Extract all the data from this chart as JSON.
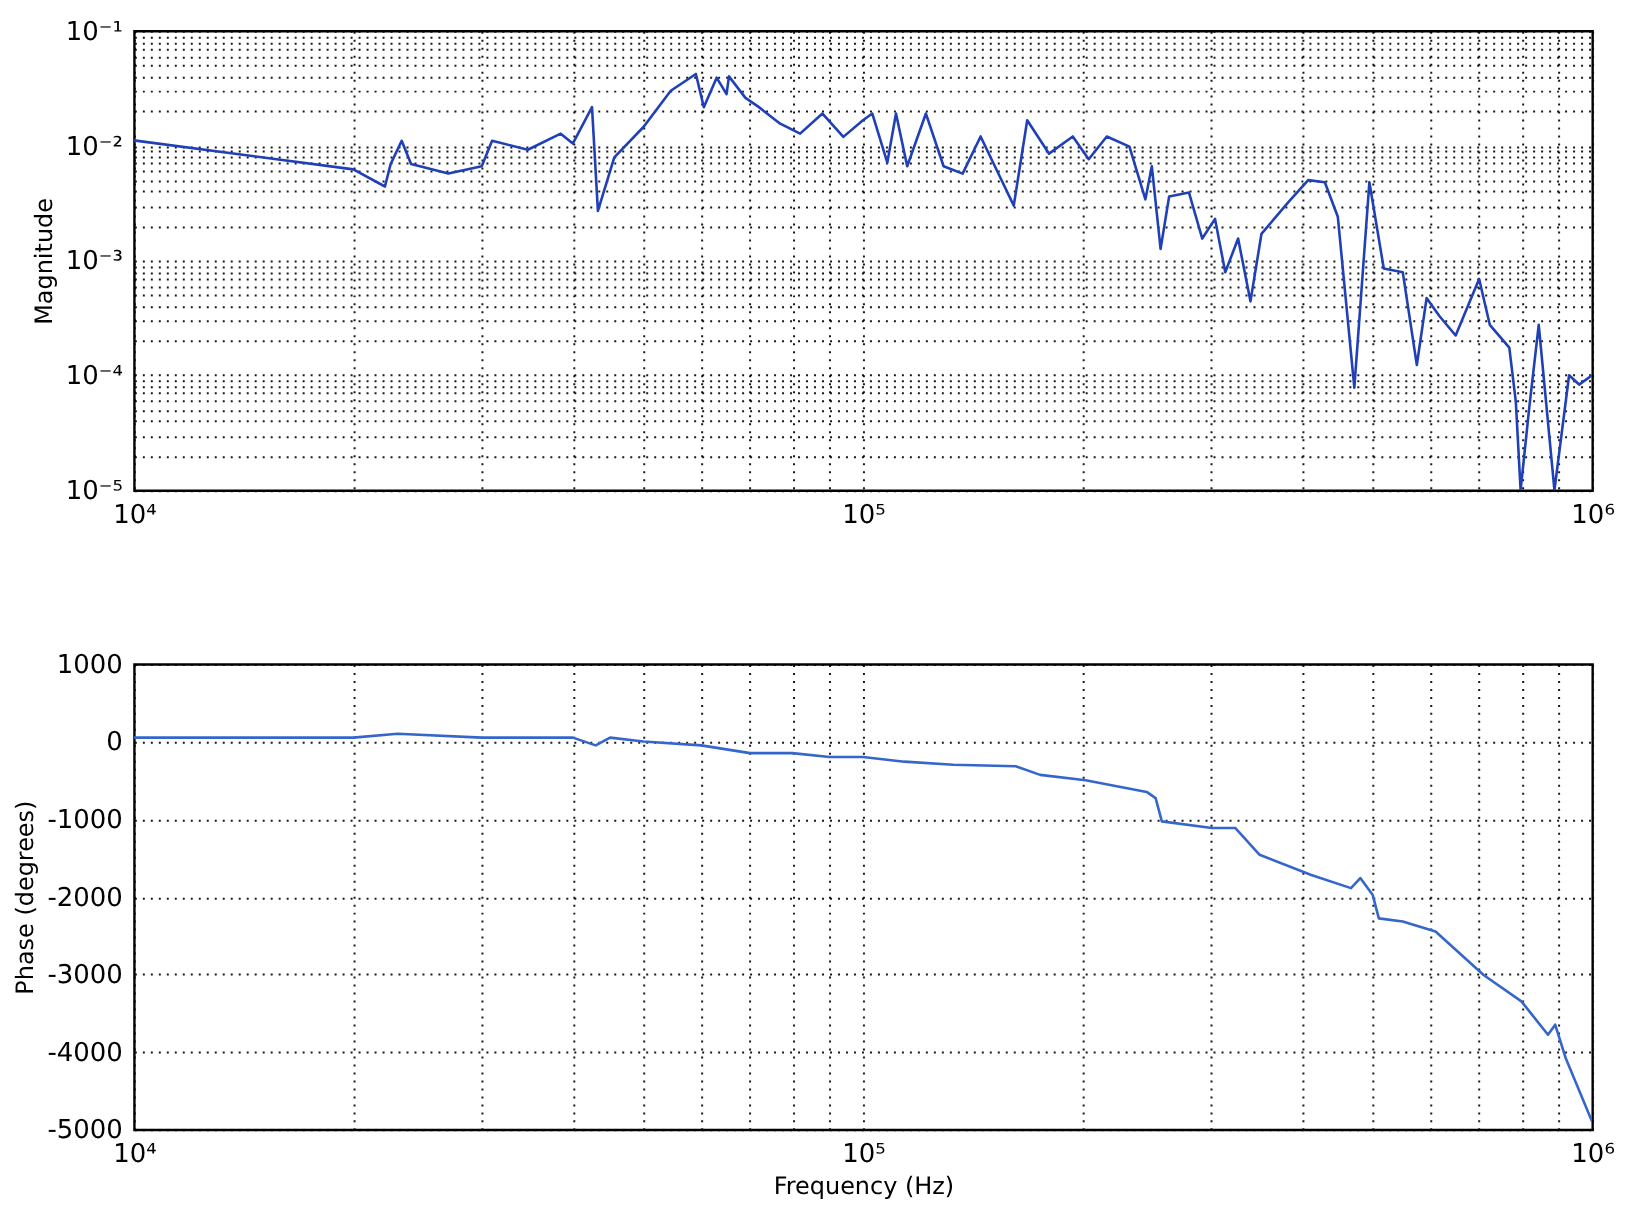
{
  "chart_data": [
    {
      "type": "line",
      "ylabel": "Magnitude",
      "log": "xy",
      "grid": true,
      "marker": "none",
      "line_style": "solid",
      "xlim": [
        10000,
        1000000
      ],
      "xticks": [
        {
          "value": 10000,
          "label": "10⁴"
        },
        {
          "value": 20000,
          "label": null
        },
        {
          "value": 30000,
          "label": null
        },
        {
          "value": 40000,
          "label": null
        },
        {
          "value": 50000,
          "label": null
        },
        {
          "value": 60000,
          "label": null
        },
        {
          "value": 70000,
          "label": null
        },
        {
          "value": 80000,
          "label": null
        },
        {
          "value": 90000,
          "label": null
        },
        {
          "value": 100000,
          "label": "10⁵"
        },
        {
          "value": 200000,
          "label": null
        },
        {
          "value": 300000,
          "label": null
        },
        {
          "value": 400000,
          "label": null
        },
        {
          "value": 500000,
          "label": null
        },
        {
          "value": 600000,
          "label": null
        },
        {
          "value": 700000,
          "label": null
        },
        {
          "value": 800000,
          "label": null
        },
        {
          "value": 900000,
          "label": null
        },
        {
          "value": 1000000,
          "label": "10⁶"
        }
      ],
      "ylim": [
        1e-05,
        0.1
      ],
      "yticks": [
        {
          "value": 1e-05,
          "label": "10⁻⁵"
        },
        {
          "value": 2e-05,
          "label": null
        },
        {
          "value": 3e-05,
          "label": null
        },
        {
          "value": 4e-05,
          "label": null
        },
        {
          "value": 5e-05,
          "label": null
        },
        {
          "value": 6e-05,
          "label": null
        },
        {
          "value": 7e-05,
          "label": null
        },
        {
          "value": 8e-05,
          "label": null
        },
        {
          "value": 9e-05,
          "label": null
        },
        {
          "value": 0.0001,
          "label": "10⁻⁴"
        },
        {
          "value": 0.0002,
          "label": null
        },
        {
          "value": 0.0003,
          "label": null
        },
        {
          "value": 0.0004,
          "label": null
        },
        {
          "value": 0.0005,
          "label": null
        },
        {
          "value": 0.0006,
          "label": null
        },
        {
          "value": 0.0007,
          "label": null
        },
        {
          "value": 0.0008,
          "label": null
        },
        {
          "value": 0.0009,
          "label": null
        },
        {
          "value": 0.001,
          "label": "10⁻³"
        },
        {
          "value": 0.002,
          "label": null
        },
        {
          "value": 0.003,
          "label": null
        },
        {
          "value": 0.004,
          "label": null
        },
        {
          "value": 0.005,
          "label": null
        },
        {
          "value": 0.006,
          "label": null
        },
        {
          "value": 0.007,
          "label": null
        },
        {
          "value": 0.008,
          "label": null
        },
        {
          "value": 0.009,
          "label": null
        },
        {
          "value": 0.01,
          "label": "10⁻²"
        },
        {
          "value": 0.02,
          "label": null
        },
        {
          "value": 0.03,
          "label": null
        },
        {
          "value": 0.04,
          "label": null
        },
        {
          "value": 0.05,
          "label": null
        },
        {
          "value": 0.06,
          "label": null
        },
        {
          "value": 0.07,
          "label": null
        },
        {
          "value": 0.08,
          "label": null
        },
        {
          "value": 0.09,
          "label": null
        },
        {
          "value": 0.1,
          "label": "10⁻¹"
        }
      ],
      "series": [
        {
          "color": "#2040b8",
          "x": [
            10000,
            20000,
            22100,
            22500,
            23300,
            24000,
            27000,
            30000,
            31000,
            34700,
            38500,
            40000,
            42500,
            43300,
            45600,
            50000,
            54500,
            59000,
            60500,
            63000,
            65000,
            65500,
            69000,
            72000,
            77000,
            82000,
            88000,
            94000,
            100000,
            103000,
            108000,
            111000,
            115000,
            122000,
            129000,
            137000,
            145000,
            154000,
            161000,
            168000,
            180000,
            194000,
            204000,
            216000,
            232000,
            244000,
            249000,
            256000,
            263000,
            280000,
            292000,
            304000,
            314000,
            327000,
            340000,
            352000,
            383000,
            408000,
            430000,
            448000,
            472000,
            495000,
            518000,
            550000,
            575000,
            593000,
            617000,
            650000,
            700000,
            724000,
            770000,
            786000,
            798000,
            820000,
            845000,
            888000,
            930000,
            960000,
            1000000
          ],
          "values": [
            0.0111,
            0.0062,
            0.0044,
            0.0069,
            0.011,
            0.0069,
            0.0057,
            0.0066,
            0.011,
            0.0092,
            0.0127,
            0.0104,
            0.0216,
            0.0027,
            0.0079,
            0.0145,
            0.03,
            0.042,
            0.0216,
            0.039,
            0.028,
            0.04,
            0.026,
            0.0216,
            0.0155,
            0.0127,
            0.019,
            0.0119,
            0.0166,
            0.019,
            0.0071,
            0.019,
            0.0066,
            0.019,
            0.0066,
            0.0057,
            0.012,
            0.0054,
            0.003,
            0.0166,
            0.0085,
            0.012,
            0.0076,
            0.012,
            0.0098,
            0.0034,
            0.0066,
            0.00126,
            0.0036,
            0.0039,
            0.00155,
            0.0023,
            0.00079,
            0.00155,
            0.00044,
            0.0017,
            0.0032,
            0.005,
            0.0048,
            0.0024,
            7.8e-05,
            0.0048,
            0.00085,
            0.00079,
            0.000123,
            0.00047,
            0.00033,
            0.000222,
            0.00069,
            0.000275,
            0.000174,
            5.9e-05,
            1e-05,
            5.2e-05,
            0.000275,
            1e-05,
            0.0001,
            8.3e-05,
            0.0001
          ]
        }
      ]
    },
    {
      "type": "line",
      "xlabel": "Frequency (Hz)",
      "ylabel": "Phase (degrees)",
      "log": "x",
      "grid": true,
      "marker": "none",
      "line_style": "solid",
      "xlim": [
        10000,
        1000000
      ],
      "xticks": [
        {
          "value": 10000,
          "label": "10⁴"
        },
        {
          "value": 20000,
          "label": null
        },
        {
          "value": 30000,
          "label": null
        },
        {
          "value": 40000,
          "label": null
        },
        {
          "value": 50000,
          "label": null
        },
        {
          "value": 60000,
          "label": null
        },
        {
          "value": 70000,
          "label": null
        },
        {
          "value": 80000,
          "label": null
        },
        {
          "value": 90000,
          "label": null
        },
        {
          "value": 100000,
          "label": "10⁵"
        },
        {
          "value": 200000,
          "label": null
        },
        {
          "value": 300000,
          "label": null
        },
        {
          "value": 400000,
          "label": null
        },
        {
          "value": 500000,
          "label": null
        },
        {
          "value": 600000,
          "label": null
        },
        {
          "value": 700000,
          "label": null
        },
        {
          "value": 800000,
          "label": null
        },
        {
          "value": 900000,
          "label": null
        },
        {
          "value": 1000000,
          "label": "10⁶"
        }
      ],
      "ylim": [
        -5000,
        1000
      ],
      "yticks": [
        -5000,
        -4000,
        -3000,
        -2000,
        -1000,
        0,
        1000
      ],
      "series": [
        {
          "color": "#3566cc",
          "x": [
            10000,
            20000,
            23000,
            30000,
            40000,
            43000,
            45000,
            50000,
            60000,
            70000,
            80000,
            90000,
            100000,
            114000,
            133000,
            162000,
            175000,
            202000,
            245000,
            252000,
            257000,
            301000,
            324000,
            350000,
            412000,
            467000,
            481000,
            500000,
            510000,
            550000,
            610000,
            710000,
            800000,
            870000,
            890000,
            920000,
            1000000
          ],
          "values": [
            50,
            50,
            100,
            50,
            50,
            -50,
            50,
            0,
            -50,
            -150,
            -150,
            -200,
            -200,
            -260,
            -300,
            -320,
            -430,
            -500,
            -650,
            -730,
            -1030,
            -1115,
            -1115,
            -1460,
            -1720,
            -1890,
            -1760,
            -1975,
            -2280,
            -2320,
            -2450,
            -3010,
            -3350,
            -3780,
            -3650,
            -4080,
            -4900
          ]
        }
      ]
    }
  ]
}
